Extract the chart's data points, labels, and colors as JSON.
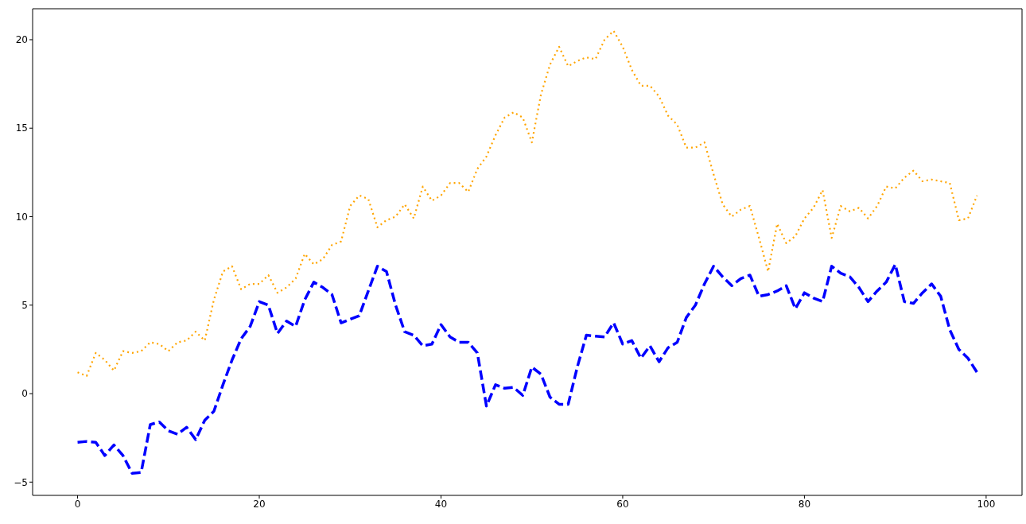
{
  "chart_data": {
    "type": "line",
    "x": [
      0,
      1,
      2,
      3,
      4,
      5,
      6,
      7,
      8,
      9,
      10,
      11,
      12,
      13,
      14,
      15,
      16,
      17,
      18,
      19,
      20,
      21,
      22,
      23,
      24,
      25,
      26,
      27,
      28,
      29,
      30,
      31,
      32,
      33,
      34,
      35,
      36,
      37,
      38,
      39,
      40,
      41,
      42,
      43,
      44,
      45,
      46,
      47,
      48,
      49,
      50,
      51,
      52,
      53,
      54,
      55,
      56,
      57,
      58,
      59,
      60,
      61,
      62,
      63,
      64,
      65,
      66,
      67,
      68,
      69,
      70,
      71,
      72,
      73,
      74,
      75,
      76,
      77,
      78,
      79,
      80,
      81,
      82,
      83,
      84,
      85,
      86,
      87,
      88,
      89,
      90,
      91,
      92,
      93,
      94,
      95,
      96,
      97,
      98,
      99
    ],
    "series": [
      {
        "color": "#0000ff",
        "line_style": "dashed",
        "values": [
          -2.75,
          -2.7,
          -2.75,
          -3.5,
          -2.9,
          -3.5,
          -4.5,
          -4.45,
          -1.75,
          -1.6,
          -2.1,
          -2.3,
          -1.9,
          -2.6,
          -1.5,
          -1.0,
          0.5,
          1.9,
          3.1,
          3.8,
          5.2,
          5.0,
          3.4,
          4.1,
          3.8,
          5.3,
          6.3,
          6.0,
          5.6,
          4.0,
          4.2,
          4.4,
          5.8,
          7.2,
          6.9,
          5.0,
          3.5,
          3.3,
          2.7,
          2.8,
          3.9,
          3.2,
          2.9,
          2.9,
          2.3,
          -0.7,
          0.5,
          0.3,
          0.35,
          -0.1,
          1.5,
          1.1,
          -0.2,
          -0.6,
          -0.6,
          1.5,
          3.3,
          3.25,
          3.2,
          4.0,
          2.8,
          3.0,
          2.0,
          2.7,
          1.8,
          2.6,
          2.9,
          4.3,
          5.0,
          6.2,
          7.2,
          6.6,
          6.1,
          6.5,
          6.7,
          5.5,
          5.6,
          5.8,
          6.1,
          4.8,
          5.7,
          5.4,
          5.2,
          7.2,
          6.8,
          6.6,
          6.0,
          5.2,
          5.8,
          6.3,
          7.3,
          5.2,
          5.1,
          5.7,
          6.2,
          5.5,
          3.6,
          2.5,
          2.0,
          1.2
        ]
      },
      {
        "color": "#ffa500",
        "line_style": "dotted",
        "values": [
          1.2,
          1.0,
          2.3,
          1.9,
          1.3,
          2.4,
          2.3,
          2.4,
          2.9,
          2.8,
          2.4,
          2.9,
          3.0,
          3.5,
          3.0,
          5.3,
          6.9,
          7.2,
          5.9,
          6.2,
          6.2,
          6.7,
          5.7,
          6.0,
          6.5,
          7.9,
          7.3,
          7.6,
          8.4,
          8.6,
          10.6,
          11.2,
          11.0,
          9.4,
          9.8,
          10.0,
          10.7,
          9.9,
          11.7,
          10.9,
          11.2,
          11.9,
          11.9,
          11.4,
          12.7,
          13.4,
          14.6,
          15.6,
          15.9,
          15.6,
          14.2,
          16.9,
          18.6,
          19.6,
          18.5,
          18.8,
          19.0,
          18.9,
          20.0,
          20.5,
          19.6,
          18.3,
          17.4,
          17.4,
          16.8,
          15.7,
          15.2,
          13.9,
          13.9,
          14.2,
          12.4,
          10.7,
          10.0,
          10.4,
          10.6,
          8.8,
          6.9,
          9.6,
          8.5,
          8.9,
          9.9,
          10.5,
          11.5,
          8.8,
          10.6,
          10.3,
          10.5,
          9.9,
          10.6,
          11.7,
          11.6,
          12.2,
          12.6,
          12.0,
          12.1,
          12.0,
          11.9,
          9.8,
          9.9,
          11.2
        ]
      }
    ],
    "xlim": [
      -4.95,
      103.95
    ],
    "ylim": [
      -5.75,
      21.75
    ],
    "xticks": [
      0,
      20,
      40,
      60,
      80,
      100
    ],
    "yticks": [
      -5,
      0,
      5,
      10,
      15,
      20
    ]
  }
}
